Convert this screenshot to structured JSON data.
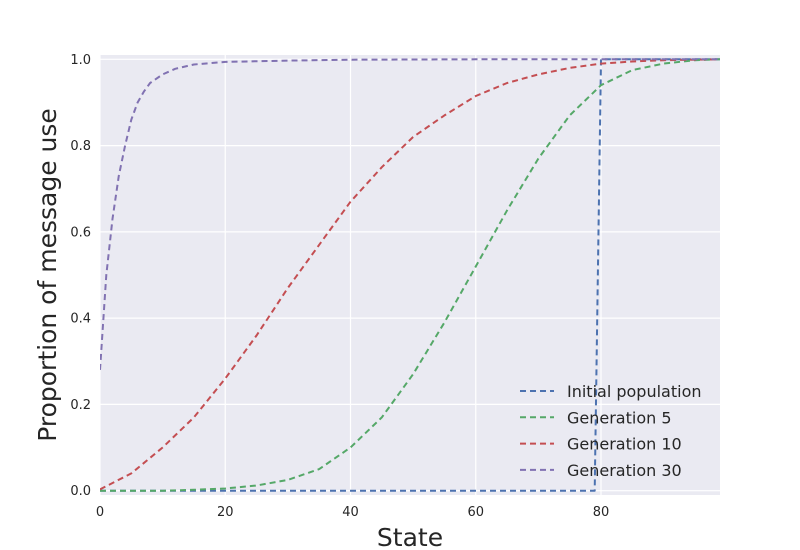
{
  "chart_data": {
    "type": "line",
    "title": "",
    "xlabel": "State",
    "ylabel": "Proportion of message use",
    "xlim": [
      0,
      99
    ],
    "ylim": [
      -0.01,
      1.01
    ],
    "xticks": [
      0,
      20,
      40,
      60,
      80
    ],
    "xtick_labels": [
      "0",
      "20",
      "40",
      "60",
      "80"
    ],
    "yticks": [
      0.0,
      0.2,
      0.4,
      0.6,
      0.8,
      1.0
    ],
    "ytick_labels": [
      "0.0",
      "0.2",
      "0.4",
      "0.6",
      "0.8",
      "1.0"
    ],
    "grid": true,
    "legend_position": "lower-right",
    "line_style": "dashed",
    "background_color": "#eaeaf2",
    "series": [
      {
        "name": "Initial population",
        "color": "#4c72b0",
        "x": [
          0,
          79,
          80,
          99
        ],
        "y": [
          0.0,
          0.0,
          1.0,
          1.0
        ]
      },
      {
        "name": "Generation 5",
        "color": "#55a868",
        "x": [
          0,
          10,
          15,
          20,
          25,
          30,
          35,
          40,
          45,
          50,
          55,
          60,
          65,
          70,
          75,
          80,
          85,
          90,
          95,
          99
        ],
        "y": [
          0.0,
          0.0,
          0.002,
          0.005,
          0.012,
          0.025,
          0.05,
          0.1,
          0.17,
          0.27,
          0.39,
          0.52,
          0.65,
          0.77,
          0.87,
          0.94,
          0.975,
          0.99,
          0.998,
          1.0
        ]
      },
      {
        "name": "Generation 10",
        "color": "#c44e52",
        "x": [
          0,
          5,
          10,
          15,
          20,
          25,
          30,
          35,
          40,
          45,
          50,
          55,
          60,
          65,
          70,
          75,
          80,
          85,
          90,
          95,
          99
        ],
        "y": [
          0.003,
          0.04,
          0.1,
          0.17,
          0.26,
          0.36,
          0.47,
          0.57,
          0.67,
          0.75,
          0.82,
          0.87,
          0.915,
          0.945,
          0.965,
          0.98,
          0.99,
          0.995,
          0.998,
          0.999,
          1.0
        ]
      },
      {
        "name": "Generation 30",
        "color": "#8172b2",
        "x": [
          0,
          1,
          2,
          3,
          4,
          5,
          6,
          7,
          8,
          10,
          12,
          15,
          20,
          30,
          40,
          60,
          80,
          99
        ],
        "y": [
          0.28,
          0.5,
          0.63,
          0.73,
          0.8,
          0.86,
          0.9,
          0.925,
          0.945,
          0.965,
          0.978,
          0.988,
          0.994,
          0.997,
          0.999,
          1.0,
          1.0,
          1.0
        ]
      }
    ]
  }
}
